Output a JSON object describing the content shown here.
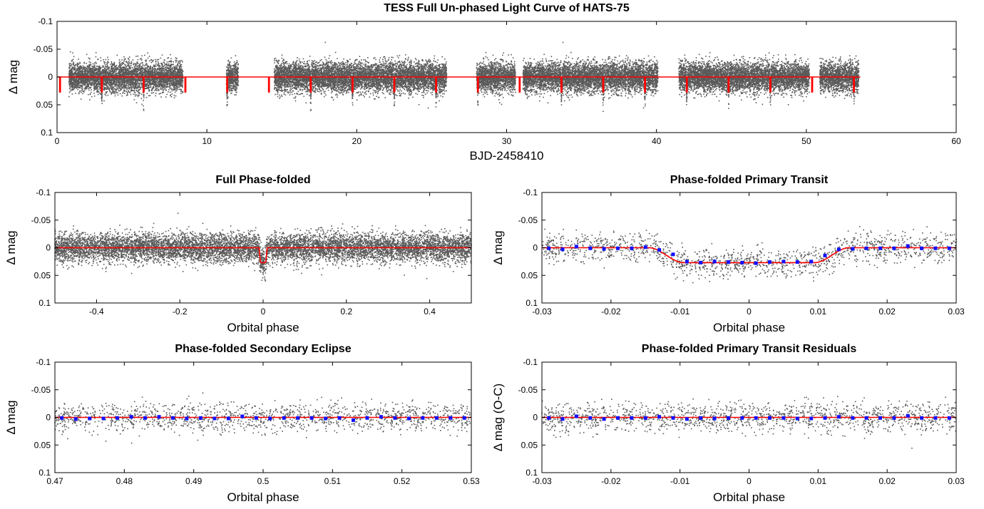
{
  "chart_data": [
    {
      "id": "full",
      "type": "scatter",
      "title": "TESS Full Un-phased Light Curve of HATS-75",
      "xlabel": "BJD-2458410",
      "ylabel": "Δ mag",
      "xlim": [
        0,
        60
      ],
      "ylim": [
        -0.1,
        0.1
      ],
      "y_inverted": true,
      "xticks": [
        "0",
        "10",
        "20",
        "30",
        "40",
        "50",
        "60"
      ],
      "yticks": [
        "-0.1",
        "-0.05",
        "0",
        "0.05",
        "0.1"
      ],
      "grid": false,
      "data_segments": [
        [
          0.8,
          8.4
        ],
        [
          11.3,
          12.1
        ],
        [
          14.5,
          26.0
        ],
        [
          28.0,
          30.6
        ],
        [
          31.1,
          40.1
        ],
        [
          41.5,
          50.2
        ],
        [
          50.9,
          53.5
        ]
      ],
      "scatter": 0.013,
      "point_color": "#5a5a5a",
      "series": [
        {
          "kind": "model",
          "color": "#ff0000",
          "baseline": 0,
          "transit_depth": 0.027,
          "first_transit": 0.2,
          "period": 2.7883,
          "last_time": 53.6
        }
      ]
    },
    {
      "id": "folded",
      "type": "scatter",
      "title": "Full Phase-folded",
      "xlabel": "Orbital phase",
      "ylabel": "Δ mag",
      "xlim": [
        -0.5,
        0.5
      ],
      "ylim": [
        -0.1,
        0.1
      ],
      "y_inverted": true,
      "xticks": [
        "-0.4",
        "-0.2",
        "0",
        "0.2",
        "0.4"
      ],
      "yticks": [
        "-0.1",
        "-0.05",
        "0",
        "0.05",
        "0.1"
      ],
      "grid": false,
      "scatter": 0.013,
      "point_color": "#5a5a5a",
      "series": [
        {
          "kind": "model",
          "color": "#ff0000",
          "transit_depth": 0.027,
          "transit_half_width": 0.01,
          "ingress": 0.004
        }
      ]
    },
    {
      "id": "primary",
      "type": "scatter",
      "title": "Phase-folded Primary Transit",
      "xlabel": "Orbital phase",
      "ylabel": "Δ mag",
      "xlim": [
        -0.03,
        0.03
      ],
      "ylim": [
        -0.1,
        0.1
      ],
      "y_inverted": true,
      "xticks": [
        "-0.03",
        "-0.02",
        "-0.01",
        "0",
        "0.01",
        "0.02",
        "0.03"
      ],
      "yticks": [
        "-0.1",
        "-0.05",
        "0",
        "0.05",
        "0.1"
      ],
      "grid": false,
      "scatter": 0.013,
      "point_color": "#5a5a5a",
      "series": [
        {
          "kind": "model",
          "color": "#ff0000",
          "transit_depth": 0.027,
          "transit_half_width": 0.0145,
          "ingress": 0.005
        },
        {
          "kind": "binned",
          "color": "#1010ff",
          "x": [
            -0.029,
            -0.027,
            -0.025,
            -0.023,
            -0.021,
            -0.019,
            -0.017,
            -0.015,
            -0.013,
            -0.011,
            -0.009,
            -0.007,
            -0.005,
            -0.003,
            -0.001,
            0.001,
            0.003,
            0.005,
            0.007,
            0.009,
            0.011,
            0.013,
            0.015,
            0.017,
            0.019,
            0.021,
            0.023,
            0.025,
            0.027,
            0.029
          ],
          "y": [
            0.001,
            0.003,
            -0.002,
            0.001,
            0.002,
            0.001,
            0.001,
            -0.001,
            0.004,
            0.012,
            0.025,
            0.027,
            0.025,
            0.026,
            0.027,
            0.028,
            0.026,
            0.025,
            0.026,
            0.025,
            0.014,
            0.003,
            0.002,
            0.001,
            0.001,
            0.001,
            -0.003,
            0.001,
            0.001,
            0.001
          ]
        }
      ]
    },
    {
      "id": "secondary",
      "type": "scatter",
      "title": "Phase-folded Secondary Eclipse",
      "xlabel": "Orbital phase",
      "ylabel": "Δ mag",
      "xlim": [
        0.47,
        0.53
      ],
      "ylim": [
        -0.1,
        0.1
      ],
      "y_inverted": true,
      "xticks": [
        "0.47",
        "0.48",
        "0.49",
        "0.5",
        "0.51",
        "0.52",
        "0.53"
      ],
      "yticks": [
        "-0.1",
        "-0.05",
        "0",
        "0.05",
        "0.1"
      ],
      "grid": false,
      "scatter": 0.013,
      "point_color": "#5a5a5a",
      "series": [
        {
          "kind": "model",
          "color": "#ff0000",
          "transit_depth": 0
        },
        {
          "kind": "binned",
          "color": "#1010ff",
          "x": [
            0.471,
            0.473,
            0.475,
            0.477,
            0.479,
            0.481,
            0.483,
            0.485,
            0.487,
            0.489,
            0.491,
            0.493,
            0.495,
            0.497,
            0.499,
            0.501,
            0.503,
            0.505,
            0.507,
            0.509,
            0.511,
            0.513,
            0.515,
            0.517,
            0.519,
            0.521,
            0.523,
            0.525,
            0.527,
            0.529
          ],
          "y": [
            0.001,
            0.003,
            0.002,
            0.002,
            0.001,
            -0.001,
            0.001,
            -0.001,
            0.001,
            0.002,
            0.001,
            0.002,
            0.002,
            -0.002,
            0.001,
            0.002,
            0.001,
            0.001,
            0.001,
            0.002,
            0.001,
            0.005,
            0.001,
            -0.001,
            0.001,
            0.002,
            0.001,
            0.001,
            0.001,
            0.001
          ]
        }
      ]
    },
    {
      "id": "residuals",
      "type": "scatter",
      "title": "Phase-folded Primary Transit Residuals",
      "xlabel": "Orbital phase",
      "ylabel": "Δ mag (O-C)",
      "xlim": [
        -0.03,
        0.03
      ],
      "ylim": [
        -0.1,
        0.1
      ],
      "y_inverted": true,
      "xticks": [
        "-0.03",
        "-0.02",
        "-0.01",
        "0",
        "0.01",
        "0.02",
        "0.03"
      ],
      "yticks": [
        "-0.1",
        "-0.05",
        "0",
        "0.05",
        "0.1"
      ],
      "grid": false,
      "scatter": 0.013,
      "point_color": "#5a5a5a",
      "series": [
        {
          "kind": "model",
          "color": "#ff0000",
          "transit_depth": 0
        },
        {
          "kind": "binned",
          "color": "#1010ff",
          "x": [
            -0.029,
            -0.027,
            -0.025,
            -0.023,
            -0.021,
            -0.019,
            -0.017,
            -0.015,
            -0.013,
            -0.011,
            -0.009,
            -0.007,
            -0.005,
            -0.003,
            -0.001,
            0.001,
            0.003,
            0.005,
            0.007,
            0.009,
            0.011,
            0.013,
            0.015,
            0.017,
            0.019,
            0.021,
            0.023,
            0.025,
            0.027,
            0.029
          ],
          "y": [
            0.001,
            0.003,
            -0.002,
            0.001,
            0.003,
            0.001,
            0.001,
            0.001,
            -0.001,
            0.001,
            0.003,
            0.001,
            0.002,
            0.001,
            0.001,
            0.001,
            0.001,
            0.001,
            0.002,
            0.002,
            0.001,
            -0.001,
            0.001,
            0.001,
            0.001,
            0.001,
            -0.003,
            0.001,
            0.001,
            0.001
          ]
        }
      ]
    }
  ]
}
